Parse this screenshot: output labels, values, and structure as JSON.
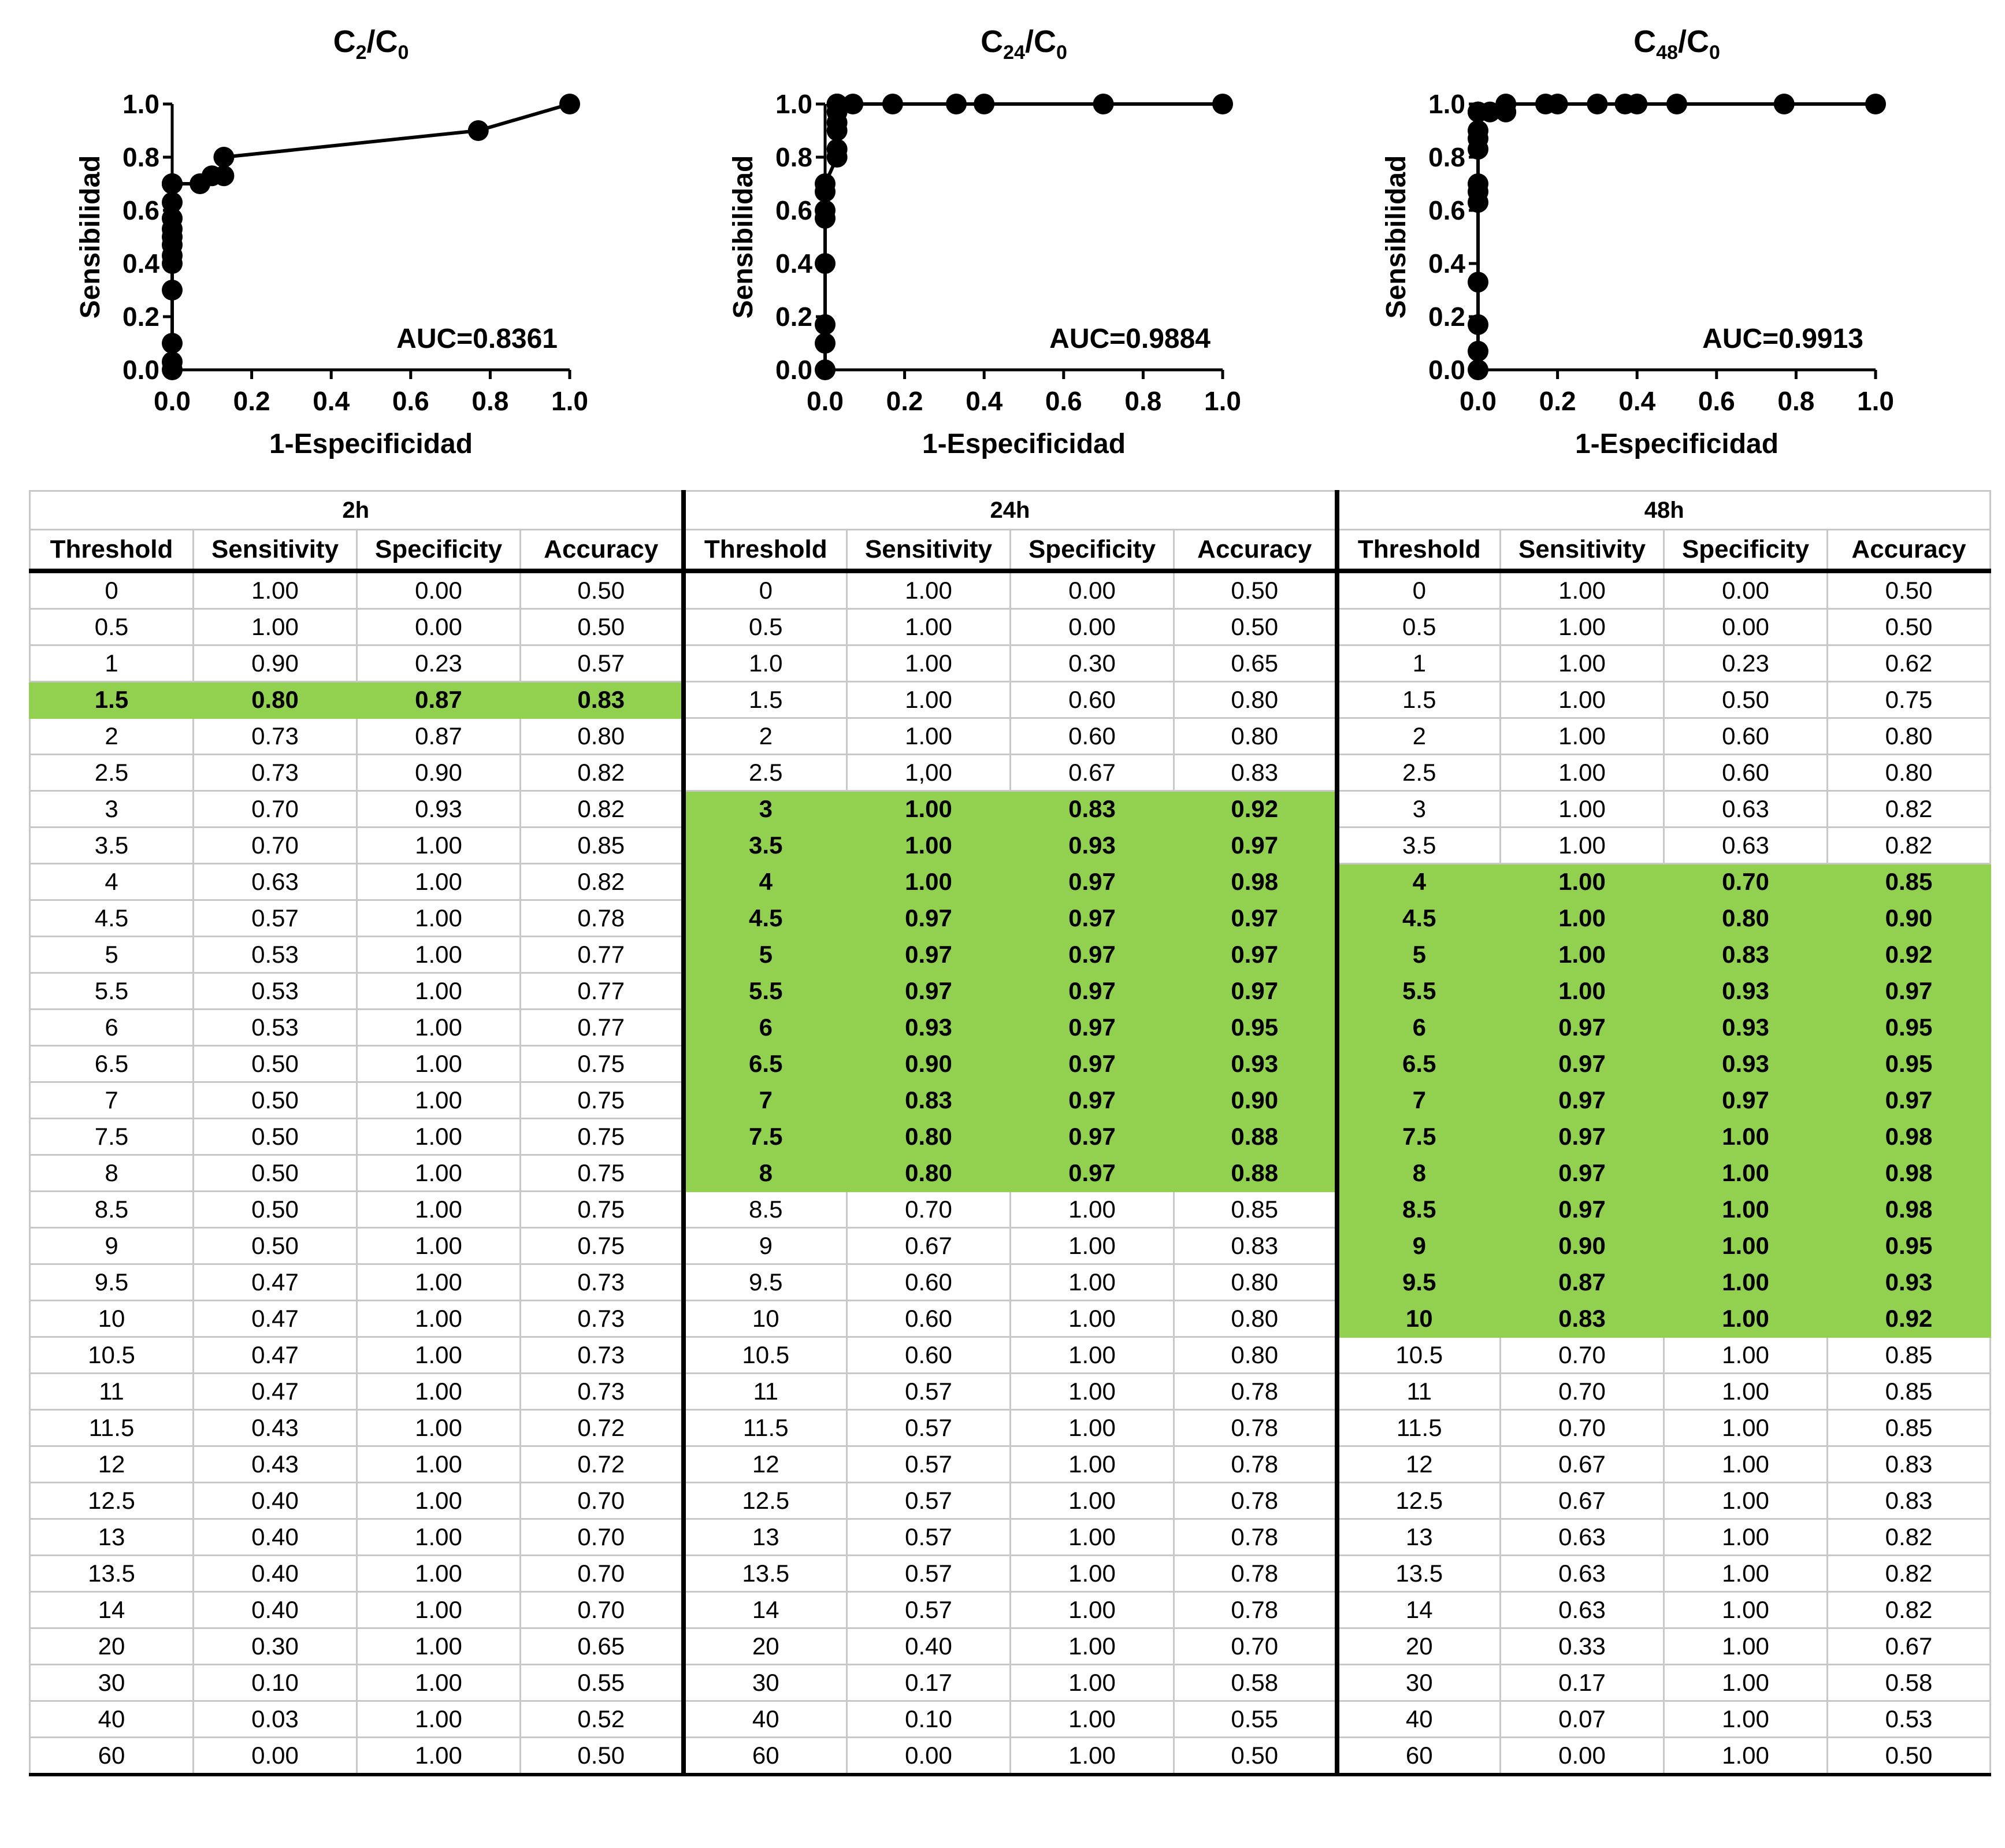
{
  "charts": [
    {
      "title_main": "C",
      "title_sub1": "2",
      "title_slash": "/C",
      "title_sub2": "0",
      "auc_label": "AUC=0.8361",
      "xlabel": "1-Especificidad",
      "ylabel": "Sensibilidad"
    },
    {
      "title_main": "C",
      "title_sub1": "24",
      "title_slash": "/C",
      "title_sub2": "0",
      "auc_label": "AUC=0.9884",
      "xlabel": "1-Especificidad",
      "ylabel": "Sensibilidad"
    },
    {
      "title_main": "C",
      "title_sub1": "48",
      "title_slash": "/C",
      "title_sub2": "0",
      "auc_label": "AUC=0.9913",
      "xlabel": "1-Especificidad",
      "ylabel": "Sensibilidad"
    }
  ],
  "chart_data": [
    {
      "type": "line",
      "title": "C2/C0",
      "xlabel": "1-Especificidad",
      "ylabel": "Sensibilidad",
      "xlim": [
        0,
        1
      ],
      "ylim": [
        0,
        1
      ],
      "xticks": [
        "0.0",
        "0.2",
        "0.4",
        "0.6",
        "0.8",
        "1.0"
      ],
      "yticks": [
        "0.0",
        "0.2",
        "0.4",
        "0.6",
        "0.8",
        "1.0"
      ],
      "annotation": "AUC=0.8361",
      "x": [
        0.0,
        0.0,
        0.0,
        0.0,
        0.0,
        0.0,
        0.0,
        0.0,
        0.0,
        0.0,
        0.0,
        0.0,
        0.0,
        0.0,
        0.0,
        0.0,
        0.0,
        0.0,
        0.07,
        0.1,
        0.13,
        0.13,
        0.77,
        1.0
      ],
      "y": [
        0.0,
        0.03,
        0.1,
        0.3,
        0.4,
        0.43,
        0.47,
        0.5,
        0.53,
        0.57,
        0.63,
        0.7,
        0.7,
        0.7,
        0.7,
        0.7,
        0.7,
        0.7,
        0.7,
        0.73,
        0.73,
        0.8,
        0.9,
        1.0
      ]
    },
    {
      "type": "line",
      "title": "C24/C0",
      "xlabel": "1-Especificidad",
      "ylabel": "Sensibilidad",
      "xlim": [
        0,
        1
      ],
      "ylim": [
        0,
        1
      ],
      "xticks": [
        "0.0",
        "0.2",
        "0.4",
        "0.6",
        "0.8",
        "1.0"
      ],
      "yticks": [
        "0.0",
        "0.2",
        "0.4",
        "0.6",
        "0.8",
        "1.0"
      ],
      "annotation": "AUC=0.9884",
      "x": [
        0.0,
        0.0,
        0.0,
        0.0,
        0.0,
        0.0,
        0.0,
        0.0,
        0.03,
        0.03,
        0.03,
        0.03,
        0.03,
        0.03,
        0.03,
        0.03,
        0.03,
        0.07,
        0.17,
        0.33,
        0.4,
        0.7,
        1.0
      ],
      "y": [
        0.0,
        0.1,
        0.17,
        0.4,
        0.57,
        0.6,
        0.67,
        0.7,
        0.8,
        0.83,
        0.9,
        0.93,
        0.97,
        1.0,
        1.0,
        1.0,
        1.0,
        1.0,
        1.0,
        1.0,
        1.0,
        1.0,
        1.0
      ]
    },
    {
      "type": "line",
      "title": "C48/C0",
      "xlabel": "1-Especificidad",
      "ylabel": "Sensibilidad",
      "xlim": [
        0,
        1
      ],
      "ylim": [
        0,
        1
      ],
      "xticks": [
        "0.0",
        "0.2",
        "0.4",
        "0.6",
        "0.8",
        "1.0"
      ],
      "yticks": [
        "0.0",
        "0.2",
        "0.4",
        "0.6",
        "0.8",
        "1.0"
      ],
      "annotation": "AUC=0.9913",
      "x": [
        0.0,
        0.0,
        0.0,
        0.0,
        0.0,
        0.0,
        0.0,
        0.0,
        0.0,
        0.0,
        0.0,
        0.0,
        0.0,
        0.03,
        0.07,
        0.07,
        0.17,
        0.2,
        0.3,
        0.37,
        0.4,
        0.5,
        0.77,
        1.0
      ],
      "y": [
        0.0,
        0.07,
        0.17,
        0.33,
        0.63,
        0.67,
        0.7,
        0.83,
        0.87,
        0.9,
        0.97,
        0.97,
        0.97,
        0.97,
        0.97,
        1.0,
        1.0,
        1.0,
        1.0,
        1.0,
        1.0,
        1.0,
        1.0,
        1.0
      ]
    },
    {
      "type": "table",
      "groups": [
        "2h",
        "24h",
        "48h"
      ],
      "columns": [
        "Threshold",
        "Sensitivity",
        "Specificity",
        "Accuracy"
      ],
      "rows": [
        [
          [
            "0",
            "1.00",
            "0.00",
            "0.50"
          ],
          [
            "0",
            "1.00",
            "0.00",
            "0.50"
          ],
          [
            "0",
            "1.00",
            "0.00",
            "0.50"
          ]
        ],
        [
          [
            "0.5",
            "1.00",
            "0.00",
            "0.50"
          ],
          [
            "0.5",
            "1.00",
            "0.00",
            "0.50"
          ],
          [
            "0.5",
            "1.00",
            "0.00",
            "0.50"
          ]
        ],
        [
          [
            "1",
            "0.90",
            "0.23",
            "0.57"
          ],
          [
            "1.0",
            "1.00",
            "0.30",
            "0.65"
          ],
          [
            "1",
            "1.00",
            "0.23",
            "0.62"
          ]
        ],
        [
          [
            "1.5",
            "0.80",
            "0.87",
            "0.83"
          ],
          [
            "1.5",
            "1.00",
            "0.60",
            "0.80"
          ],
          [
            "1.5",
            "1.00",
            "0.50",
            "0.75"
          ]
        ],
        [
          [
            "2",
            "0.73",
            "0.87",
            "0.80"
          ],
          [
            "2",
            "1.00",
            "0.60",
            "0.80"
          ],
          [
            "2",
            "1.00",
            "0.60",
            "0.80"
          ]
        ],
        [
          [
            "2.5",
            "0.73",
            "0.90",
            "0.82"
          ],
          [
            "2.5",
            "1,00",
            "0.67",
            "0.83"
          ],
          [
            "2.5",
            "1.00",
            "0.60",
            "0.80"
          ]
        ],
        [
          [
            "3",
            "0.70",
            "0.93",
            "0.82"
          ],
          [
            "3",
            "1.00",
            "0.83",
            "0.92"
          ],
          [
            "3",
            "1.00",
            "0.63",
            "0.82"
          ]
        ],
        [
          [
            "3.5",
            "0.70",
            "1.00",
            "0.85"
          ],
          [
            "3.5",
            "1.00",
            "0.93",
            "0.97"
          ],
          [
            "3.5",
            "1.00",
            "0.63",
            "0.82"
          ]
        ],
        [
          [
            "4",
            "0.63",
            "1.00",
            "0.82"
          ],
          [
            "4",
            "1.00",
            "0.97",
            "0.98"
          ],
          [
            "4",
            "1.00",
            "0.70",
            "0.85"
          ]
        ],
        [
          [
            "4.5",
            "0.57",
            "1.00",
            "0.78"
          ],
          [
            "4.5",
            "0.97",
            "0.97",
            "0.97"
          ],
          [
            "4.5",
            "1.00",
            "0.80",
            "0.90"
          ]
        ],
        [
          [
            "5",
            "0.53",
            "1.00",
            "0.77"
          ],
          [
            "5",
            "0.97",
            "0.97",
            "0.97"
          ],
          [
            "5",
            "1.00",
            "0.83",
            "0.92"
          ]
        ],
        [
          [
            "5.5",
            "0.53",
            "1.00",
            "0.77"
          ],
          [
            "5.5",
            "0.97",
            "0.97",
            "0.97"
          ],
          [
            "5.5",
            "1.00",
            "0.93",
            "0.97"
          ]
        ],
        [
          [
            "6",
            "0.53",
            "1.00",
            "0.77"
          ],
          [
            "6",
            "0.93",
            "0.97",
            "0.95"
          ],
          [
            "6",
            "0.97",
            "0.93",
            "0.95"
          ]
        ],
        [
          [
            "6.5",
            "0.50",
            "1.00",
            "0.75"
          ],
          [
            "6.5",
            "0.90",
            "0.97",
            "0.93"
          ],
          [
            "6.5",
            "0.97",
            "0.93",
            "0.95"
          ]
        ],
        [
          [
            "7",
            "0.50",
            "1.00",
            "0.75"
          ],
          [
            "7",
            "0.83",
            "0.97",
            "0.90"
          ],
          [
            "7",
            "0.97",
            "0.97",
            "0.97"
          ]
        ],
        [
          [
            "7.5",
            "0.50",
            "1.00",
            "0.75"
          ],
          [
            "7.5",
            "0.80",
            "0.97",
            "0.88"
          ],
          [
            "7.5",
            "0.97",
            "1.00",
            "0.98"
          ]
        ],
        [
          [
            "8",
            "0.50",
            "1.00",
            "0.75"
          ],
          [
            "8",
            "0.80",
            "0.97",
            "0.88"
          ],
          [
            "8",
            "0.97",
            "1.00",
            "0.98"
          ]
        ],
        [
          [
            "8.5",
            "0.50",
            "1.00",
            "0.75"
          ],
          [
            "8.5",
            "0.70",
            "1.00",
            "0.85"
          ],
          [
            "8.5",
            "0.97",
            "1.00",
            "0.98"
          ]
        ],
        [
          [
            "9",
            "0.50",
            "1.00",
            "0.75"
          ],
          [
            "9",
            "0.67",
            "1.00",
            "0.83"
          ],
          [
            "9",
            "0.90",
            "1.00",
            "0.95"
          ]
        ],
        [
          [
            "9.5",
            "0.47",
            "1.00",
            "0.73"
          ],
          [
            "9.5",
            "0.60",
            "1.00",
            "0.80"
          ],
          [
            "9.5",
            "0.87",
            "1.00",
            "0.93"
          ]
        ],
        [
          [
            "10",
            "0.47",
            "1.00",
            "0.73"
          ],
          [
            "10",
            "0.60",
            "1.00",
            "0.80"
          ],
          [
            "10",
            "0.83",
            "1.00",
            "0.92"
          ]
        ],
        [
          [
            "10.5",
            "0.47",
            "1.00",
            "0.73"
          ],
          [
            "10.5",
            "0.60",
            "1.00",
            "0.80"
          ],
          [
            "10.5",
            "0.70",
            "1.00",
            "0.85"
          ]
        ],
        [
          [
            "11",
            "0.47",
            "1.00",
            "0.73"
          ],
          [
            "11",
            "0.57",
            "1.00",
            "0.78"
          ],
          [
            "11",
            "0.70",
            "1.00",
            "0.85"
          ]
        ],
        [
          [
            "11.5",
            "0.43",
            "1.00",
            "0.72"
          ],
          [
            "11.5",
            "0.57",
            "1.00",
            "0.78"
          ],
          [
            "11.5",
            "0.70",
            "1.00",
            "0.85"
          ]
        ],
        [
          [
            "12",
            "0.43",
            "1.00",
            "0.72"
          ],
          [
            "12",
            "0.57",
            "1.00",
            "0.78"
          ],
          [
            "12",
            "0.67",
            "1.00",
            "0.83"
          ]
        ],
        [
          [
            "12.5",
            "0.40",
            "1.00",
            "0.70"
          ],
          [
            "12.5",
            "0.57",
            "1.00",
            "0.78"
          ],
          [
            "12.5",
            "0.67",
            "1.00",
            "0.83"
          ]
        ],
        [
          [
            "13",
            "0.40",
            "1.00",
            "0.70"
          ],
          [
            "13",
            "0.57",
            "1.00",
            "0.78"
          ],
          [
            "13",
            "0.63",
            "1.00",
            "0.82"
          ]
        ],
        [
          [
            "13.5",
            "0.40",
            "1.00",
            "0.70"
          ],
          [
            "13.5",
            "0.57",
            "1.00",
            "0.78"
          ],
          [
            "13.5",
            "0.63",
            "1.00",
            "0.82"
          ]
        ],
        [
          [
            "14",
            "0.40",
            "1.00",
            "0.70"
          ],
          [
            "14",
            "0.57",
            "1.00",
            "0.78"
          ],
          [
            "14",
            "0.63",
            "1.00",
            "0.82"
          ]
        ],
        [
          [
            "20",
            "0.30",
            "1.00",
            "0.65"
          ],
          [
            "20",
            "0.40",
            "1.00",
            "0.70"
          ],
          [
            "20",
            "0.33",
            "1.00",
            "0.67"
          ]
        ],
        [
          [
            "30",
            "0.10",
            "1.00",
            "0.55"
          ],
          [
            "30",
            "0.17",
            "1.00",
            "0.58"
          ],
          [
            "30",
            "0.17",
            "1.00",
            "0.58"
          ]
        ],
        [
          [
            "40",
            "0.03",
            "1.00",
            "0.52"
          ],
          [
            "40",
            "0.10",
            "1.00",
            "0.55"
          ],
          [
            "40",
            "0.07",
            "1.00",
            "0.53"
          ]
        ],
        [
          [
            "60",
            "0.00",
            "1.00",
            "0.50"
          ],
          [
            "60",
            "0.00",
            "1.00",
            "0.50"
          ],
          [
            "60",
            "0.00",
            "1.00",
            "0.50"
          ]
        ]
      ],
      "highlight_rows": [
        [
          3
        ],
        [
          6,
          7,
          8,
          9,
          10,
          11,
          12,
          13,
          14,
          15,
          16
        ],
        [
          8,
          9,
          10,
          11,
          12,
          13,
          14,
          15,
          16,
          17,
          18,
          19,
          20
        ]
      ],
      "highlight_color": "#92d050"
    }
  ]
}
